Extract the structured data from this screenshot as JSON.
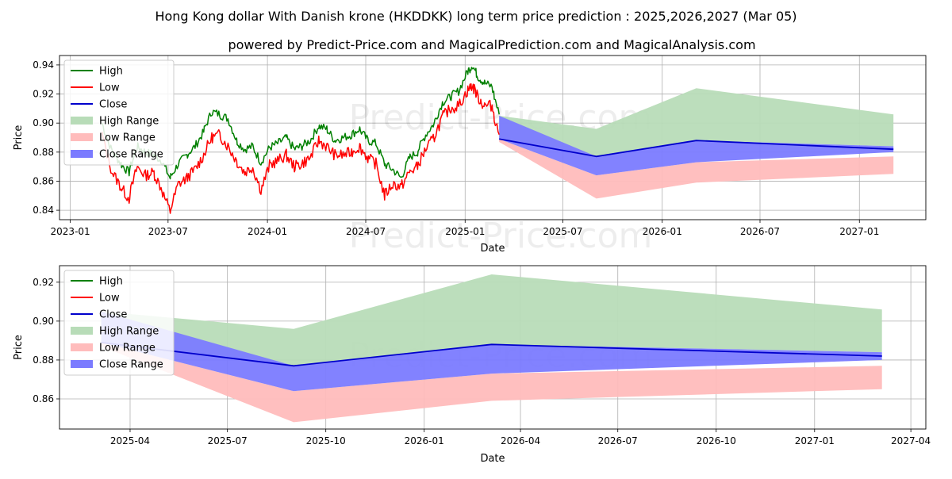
{
  "title": "Hong Kong dollar With Danish krone (HKDDKK) long term price prediction : 2025,2026,2027 (Mar 05)",
  "subtitle": "powered by Predict-Price.com and MagicalPrediction.com and MagicalAnalysis.com",
  "watermark": "Predict-Price.com",
  "colors": {
    "high": "#008000",
    "low": "#ff0000",
    "close": "#0000cc",
    "high_range": "#b8dcb8",
    "low_range": "#ffbcbc",
    "close_range": "#7b7bff",
    "grid": "#b0b0b0"
  },
  "chart_data": [
    {
      "type": "line",
      "title": "",
      "xlabel": "Date",
      "ylabel": "Price",
      "x_range": [
        "2022-12-12",
        "2027-05-04"
      ],
      "ylim": [
        0.8335,
        0.9465
      ],
      "x_ticks": [
        {
          "date": "2023-01-01",
          "label": "2023-01"
        },
        {
          "date": "2023-07-01",
          "label": "2023-07"
        },
        {
          "date": "2024-01-01",
          "label": "2024-01"
        },
        {
          "date": "2024-07-01",
          "label": "2024-07"
        },
        {
          "date": "2025-01-01",
          "label": "2025-01"
        },
        {
          "date": "2025-07-01",
          "label": "2025-07"
        },
        {
          "date": "2026-01-01",
          "label": "2026-01"
        },
        {
          "date": "2026-07-01",
          "label": "2026-07"
        },
        {
          "date": "2027-01-01",
          "label": "2027-01"
        }
      ],
      "y_ticks": [
        "0.84",
        "0.86",
        "0.88",
        "0.90",
        "0.92",
        "0.94"
      ],
      "legend": [
        "High",
        "Low",
        "Close",
        "High Range",
        "Low Range",
        "Close Range"
      ],
      "legend_position": "upper-left",
      "history": {
        "dates": [
          "2023-03-01",
          "2023-03-20",
          "2023-04-05",
          "2023-04-20",
          "2023-05-05",
          "2023-05-20",
          "2023-06-05",
          "2023-06-20",
          "2023-07-05",
          "2023-07-20",
          "2023-08-05",
          "2023-08-20",
          "2023-09-05",
          "2023-09-20",
          "2023-10-05",
          "2023-10-20",
          "2023-11-05",
          "2023-11-20",
          "2023-12-05",
          "2023-12-20",
          "2024-01-05",
          "2024-01-20",
          "2024-02-05",
          "2024-02-20",
          "2024-03-05",
          "2024-03-20",
          "2024-04-05",
          "2024-04-20",
          "2024-05-05",
          "2024-05-20",
          "2024-06-05",
          "2024-06-20",
          "2024-07-05",
          "2024-07-20",
          "2024-08-05",
          "2024-08-20",
          "2024-09-05",
          "2024-09-20",
          "2024-10-05",
          "2024-10-20",
          "2024-11-05",
          "2024-11-20",
          "2024-12-05",
          "2024-12-20",
          "2025-01-05",
          "2025-01-15",
          "2025-01-25",
          "2025-02-05",
          "2025-02-20",
          "2025-03-05"
        ],
        "high": [
          0.9,
          0.88,
          0.872,
          0.866,
          0.884,
          0.88,
          0.878,
          0.874,
          0.862,
          0.872,
          0.878,
          0.884,
          0.894,
          0.908,
          0.906,
          0.903,
          0.888,
          0.882,
          0.884,
          0.873,
          0.883,
          0.886,
          0.89,
          0.882,
          0.884,
          0.888,
          0.898,
          0.896,
          0.888,
          0.89,
          0.892,
          0.896,
          0.888,
          0.886,
          0.872,
          0.868,
          0.862,
          0.876,
          0.88,
          0.892,
          0.9,
          0.914,
          0.918,
          0.922,
          0.935,
          0.94,
          0.932,
          0.928,
          0.925,
          0.906
        ],
        "low": [
          0.892,
          0.866,
          0.856,
          0.848,
          0.87,
          0.864,
          0.866,
          0.854,
          0.839,
          0.858,
          0.862,
          0.868,
          0.878,
          0.89,
          0.892,
          0.884,
          0.874,
          0.866,
          0.87,
          0.854,
          0.871,
          0.874,
          0.878,
          0.87,
          0.872,
          0.876,
          0.888,
          0.884,
          0.878,
          0.878,
          0.88,
          0.884,
          0.876,
          0.872,
          0.85,
          0.858,
          0.856,
          0.866,
          0.87,
          0.882,
          0.89,
          0.904,
          0.91,
          0.912,
          0.922,
          0.926,
          0.918,
          0.912,
          0.912,
          0.892
        ]
      },
      "forecast": {
        "dates": [
          "2025-03-05",
          "2025-09-01",
          "2026-03-05",
          "2027-03-05"
        ],
        "close": [
          0.889,
          0.877,
          0.888,
          0.882
        ],
        "close_range": {
          "low": [
            0.889,
            0.864,
            0.873,
            0.88
          ],
          "high": [
            0.905,
            0.877,
            0.888,
            0.884
          ]
        },
        "high_range": {
          "low": [
            0.889,
            0.877,
            0.888,
            0.884
          ],
          "high": [
            0.905,
            0.896,
            0.924,
            0.906
          ]
        },
        "low_range": {
          "low": [
            0.887,
            0.848,
            0.859,
            0.865
          ],
          "high": [
            0.889,
            0.864,
            0.873,
            0.877
          ]
        }
      }
    },
    {
      "type": "line",
      "title": "",
      "xlabel": "Date",
      "ylabel": "Price",
      "x_range": [
        "2025-01-25",
        "2027-04-15"
      ],
      "ylim": [
        0.8445,
        0.9285
      ],
      "x_ticks": [
        {
          "date": "2025-04-01",
          "label": "2025-04"
        },
        {
          "date": "2025-07-01",
          "label": "2025-07"
        },
        {
          "date": "2025-10-01",
          "label": "2025-10"
        },
        {
          "date": "2026-01-01",
          "label": "2026-01"
        },
        {
          "date": "2026-04-01",
          "label": "2026-04"
        },
        {
          "date": "2026-07-01",
          "label": "2026-07"
        },
        {
          "date": "2026-10-01",
          "label": "2026-10"
        },
        {
          "date": "2027-01-01",
          "label": "2027-01"
        },
        {
          "date": "2027-04-01",
          "label": "2027-04"
        }
      ],
      "y_ticks": [
        "0.86",
        "0.88",
        "0.90",
        "0.92"
      ],
      "legend": [
        "High",
        "Low",
        "Close",
        "High Range",
        "Low Range",
        "Close Range"
      ],
      "legend_position": "upper-left",
      "forecast": {
        "dates": [
          "2025-03-05",
          "2025-09-01",
          "2026-03-05",
          "2027-03-05"
        ],
        "close": [
          0.889,
          0.877,
          0.888,
          0.882
        ],
        "close_range": {
          "low": [
            0.889,
            0.864,
            0.873,
            0.88
          ],
          "high": [
            0.905,
            0.877,
            0.888,
            0.884
          ]
        },
        "high_range": {
          "low": [
            0.889,
            0.877,
            0.888,
            0.884
          ],
          "high": [
            0.905,
            0.896,
            0.924,
            0.906
          ]
        },
        "low_range": {
          "low": [
            0.887,
            0.848,
            0.859,
            0.865
          ],
          "high": [
            0.889,
            0.864,
            0.873,
            0.877
          ]
        }
      }
    }
  ]
}
